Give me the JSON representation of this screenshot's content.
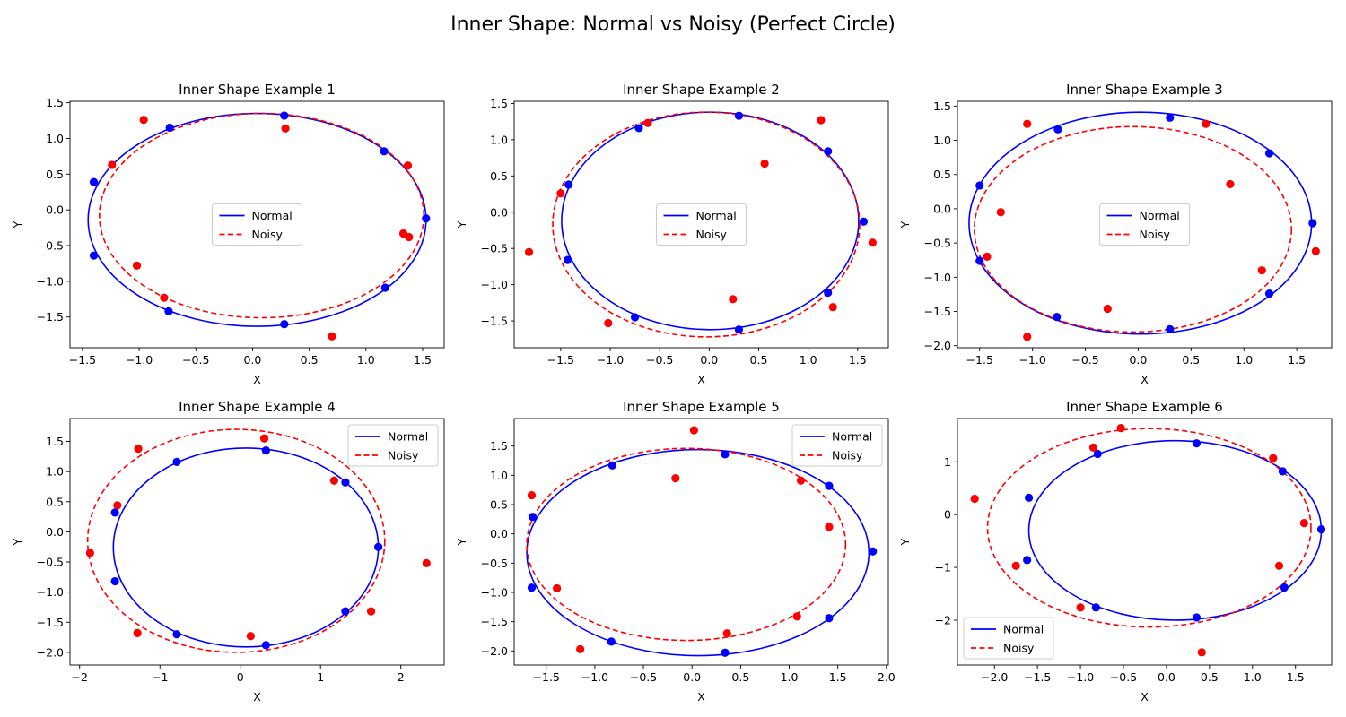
{
  "figure": {
    "suptitle": "Inner Shape: Normal vs Noisy (Perfect Circle)"
  },
  "colors": {
    "normal": "#0000ff",
    "noisy": "#ff0000"
  },
  "chart_data": [
    {
      "type": "scatter",
      "title": "Inner Shape Example 1",
      "xlabel": "X",
      "ylabel": "Y",
      "xlim": [
        -1.61,
        1.69
      ],
      "ylim": [
        -1.93,
        1.52
      ],
      "xticks": [
        -1.5,
        -1.0,
        -0.5,
        0.0,
        0.5,
        1.0,
        1.5
      ],
      "xtick_labels": [
        "−1.5",
        "−1.0",
        "−0.5",
        "0.0",
        "0.5",
        "1.0",
        "1.5"
      ],
      "yticks": [
        -1.5,
        -1.0,
        -0.5,
        0.0,
        0.5,
        1.0,
        1.5
      ],
      "ytick_labels": [
        "−1.5",
        "−1.0",
        "−0.5",
        "0.0",
        "0.5",
        "1.0",
        "1.5"
      ],
      "legend": {
        "position": "center",
        "entries": [
          "Normal",
          "Noisy"
        ]
      },
      "series": [
        {
          "name": "Normal",
          "style": "solid",
          "ellipse": {
            "cx": 0.04,
            "cy": -0.14,
            "rx": 1.49,
            "ry": 1.49
          },
          "points": [
            [
              1.53,
              -0.12
            ],
            [
              1.16,
              0.82
            ],
            [
              0.28,
              1.32
            ],
            [
              -0.73,
              1.15
            ],
            [
              -1.4,
              0.39
            ],
            [
              -1.4,
              -0.64
            ],
            [
              -0.74,
              -1.42
            ],
            [
              0.28,
              -1.6
            ],
            [
              1.17,
              -1.09
            ]
          ]
        },
        {
          "name": "Noisy",
          "style": "dashed",
          "ellipse": {
            "cx": 0.08,
            "cy": -0.08,
            "rx": 1.43,
            "ry": 1.43
          },
          "points": [
            [
              1.33,
              -0.33
            ],
            [
              1.38,
              -0.38
            ],
            [
              1.37,
              0.62
            ],
            [
              0.29,
              1.14
            ],
            [
              -0.96,
              1.26
            ],
            [
              -1.24,
              0.63
            ],
            [
              -1.02,
              -0.78
            ],
            [
              -0.78,
              -1.23
            ],
            [
              0.7,
              -1.77
            ]
          ]
        }
      ]
    },
    {
      "type": "scatter",
      "title": "Inner Shape Example 2",
      "xlabel": "X",
      "ylabel": "Y",
      "xlim": [
        -1.97,
        1.81
      ],
      "ylim": [
        -1.87,
        1.53
      ],
      "xticks": [
        -1.5,
        -1.0,
        -0.5,
        0.0,
        0.5,
        1.0,
        1.5
      ],
      "xtick_labels": [
        "−1.5",
        "−1.0",
        "−0.5",
        "0.0",
        "0.5",
        "1.0",
        "1.5"
      ],
      "yticks": [
        -1.5,
        -1.0,
        -0.5,
        0.0,
        0.5,
        1.0,
        1.5
      ],
      "ytick_labels": [
        "−1.5",
        "−1.0",
        "−0.5",
        "0.0",
        "0.5",
        "1.0",
        "1.5"
      ],
      "legend": {
        "position": "center",
        "entries": [
          "Normal",
          "Noisy"
        ]
      },
      "series": [
        {
          "name": "Normal",
          "style": "solid",
          "ellipse": {
            "cx": 0.01,
            "cy": -0.12,
            "rx": 1.5,
            "ry": 1.5
          },
          "points": [
            [
              1.56,
              -0.13
            ],
            [
              1.2,
              0.84
            ],
            [
              0.3,
              1.33
            ],
            [
              -0.71,
              1.16
            ],
            [
              -1.42,
              0.38
            ],
            [
              -1.43,
              -0.66
            ],
            [
              -0.75,
              -1.45
            ],
            [
              0.3,
              -1.62
            ],
            [
              1.2,
              -1.11
            ]
          ]
        },
        {
          "name": "Noisy",
          "style": "dashed",
          "ellipse": {
            "cx": -0.03,
            "cy": -0.17,
            "rx": 1.55,
            "ry": 1.55
          },
          "points": [
            [
              1.65,
              -0.42
            ],
            [
              1.13,
              1.27
            ],
            [
              0.56,
              0.67
            ],
            [
              -0.62,
              1.23
            ],
            [
              -1.5,
              0.26
            ],
            [
              -1.82,
              -0.55
            ],
            [
              -1.02,
              -1.53
            ],
            [
              0.24,
              -1.2
            ],
            [
              1.25,
              -1.31
            ]
          ]
        }
      ]
    },
    {
      "type": "scatter",
      "title": "Inner Shape Example 3",
      "xlabel": "X",
      "ylabel": "Y",
      "xlim": [
        -1.71,
        1.83
      ],
      "ylim": [
        -2.03,
        1.57
      ],
      "xticks": [
        -1.5,
        -1.0,
        -0.5,
        0.0,
        0.5,
        1.0,
        1.5
      ],
      "xtick_labels": [
        "−1.5",
        "−1.0",
        "−0.5",
        "0.0",
        "0.5",
        "1.0",
        "1.5"
      ],
      "yticks": [
        -2.0,
        -1.5,
        -1.0,
        -0.5,
        0.0,
        0.5,
        1.0,
        1.5
      ],
      "ytick_labels": [
        "−2.0",
        "−1.5",
        "−1.0",
        "−0.5",
        "0.0",
        "0.5",
        "1.0",
        "1.5"
      ],
      "legend": {
        "position": "center",
        "entries": [
          "Normal",
          "Noisy"
        ]
      },
      "series": [
        {
          "name": "Normal",
          "style": "solid",
          "ellipse": {
            "cx": 0.02,
            "cy": -0.21,
            "rx": 1.62,
            "ry": 1.62
          },
          "points": [
            [
              1.65,
              -0.21
            ],
            [
              1.24,
              0.81
            ],
            [
              0.3,
              1.33
            ],
            [
              -0.76,
              1.16
            ],
            [
              -1.5,
              0.34
            ],
            [
              -1.5,
              -0.76
            ],
            [
              -0.77,
              -1.58
            ],
            [
              0.3,
              -1.76
            ],
            [
              1.24,
              -1.24
            ]
          ]
        },
        {
          "name": "Noisy",
          "style": "dashed",
          "ellipse": {
            "cx": -0.05,
            "cy": -0.3,
            "rx": 1.5,
            "ry": 1.5
          },
          "points": [
            [
              1.68,
              -0.62
            ],
            [
              0.64,
              1.24
            ],
            [
              0.87,
              0.36
            ],
            [
              -1.05,
              1.24
            ],
            [
              -1.3,
              -0.05
            ],
            [
              -1.43,
              -0.7
            ],
            [
              -1.05,
              -1.87
            ],
            [
              -0.29,
              -1.46
            ],
            [
              1.17,
              -0.9
            ]
          ]
        }
      ]
    },
    {
      "type": "scatter",
      "title": "Inner Shape Example 4",
      "xlabel": "X",
      "ylabel": "Y",
      "xlim": [
        -2.12,
        2.54
      ],
      "ylim": [
        -2.21,
        1.88
      ],
      "xticks": [
        -2,
        -1,
        0,
        1,
        2
      ],
      "xtick_labels": [
        "−2",
        "−1",
        "0",
        "1",
        "2"
      ],
      "yticks": [
        -2.0,
        -1.5,
        -1.0,
        -0.5,
        0.0,
        0.5,
        1.0,
        1.5
      ],
      "ytick_labels": [
        "−2.0",
        "−1.5",
        "−1.0",
        "−0.5",
        "0.0",
        "0.5",
        "1.0",
        "1.5"
      ],
      "legend": {
        "position": "upper right",
        "entries": [
          "Normal",
          "Noisy"
        ]
      },
      "series": [
        {
          "name": "Normal",
          "style": "solid",
          "ellipse": {
            "cx": 0.07,
            "cy": -0.26,
            "rx": 1.65,
            "ry": 1.65
          },
          "points": [
            [
              1.72,
              -0.25
            ],
            [
              1.31,
              0.82
            ],
            [
              0.32,
              1.35
            ],
            [
              -0.79,
              1.16
            ],
            [
              -1.56,
              0.32
            ],
            [
              -1.56,
              -0.82
            ],
            [
              -0.79,
              -1.7
            ],
            [
              0.32,
              -1.88
            ],
            [
              1.31,
              -1.32
            ]
          ]
        },
        {
          "name": "Noisy",
          "style": "dashed",
          "ellipse": {
            "cx": -0.05,
            "cy": -0.15,
            "rx": 1.85,
            "ry": 1.85
          },
          "points": [
            [
              2.32,
              -0.52
            ],
            [
              1.17,
              0.85
            ],
            [
              0.3,
              1.55
            ],
            [
              -1.27,
              1.38
            ],
            [
              -1.53,
              0.44
            ],
            [
              -1.87,
              -0.35
            ],
            [
              -1.28,
              -1.68
            ],
            [
              0.13,
              -1.73
            ],
            [
              1.63,
              -1.32
            ]
          ]
        }
      ]
    },
    {
      "type": "scatter",
      "title": "Inner Shape Example 5",
      "xlabel": "X",
      "ylabel": "Y",
      "xlim": [
        -1.83,
        2.02
      ],
      "ylim": [
        -2.24,
        1.97
      ],
      "xticks": [
        -1.5,
        -1.0,
        -0.5,
        0.0,
        0.5,
        1.0,
        1.5,
        2.0
      ],
      "xtick_labels": [
        "−1.5",
        "−1.0",
        "−0.5",
        "0.0",
        "0.5",
        "1.0",
        "1.5",
        "2.0"
      ],
      "yticks": [
        -2.0,
        -1.5,
        -1.0,
        -0.5,
        0.0,
        0.5,
        1.0,
        1.5
      ],
      "ytick_labels": [
        "−2.0",
        "−1.5",
        "−1.0",
        "−0.5",
        "0.0",
        "0.5",
        "1.0",
        "1.5"
      ],
      "legend": {
        "position": "upper right",
        "entries": [
          "Normal",
          "Noisy"
        ]
      },
      "series": [
        {
          "name": "Normal",
          "style": "solid",
          "ellipse": {
            "cx": 0.06,
            "cy": -0.32,
            "rx": 1.76,
            "ry": 1.76
          },
          "points": [
            [
              1.86,
              -0.3
            ],
            [
              1.41,
              0.82
            ],
            [
              0.34,
              1.36
            ],
            [
              -0.82,
              1.17
            ],
            [
              -1.64,
              0.29
            ],
            [
              -1.65,
              -0.92
            ],
            [
              -0.83,
              -1.84
            ],
            [
              0.34,
              -2.03
            ],
            [
              1.41,
              -1.44
            ]
          ]
        },
        {
          "name": "Noisy",
          "style": "dashed",
          "ellipse": {
            "cx": -0.06,
            "cy": -0.18,
            "rx": 1.64,
            "ry": 1.64
          },
          "points": [
            [
              1.41,
              0.12
            ],
            [
              1.12,
              0.91
            ],
            [
              0.02,
              1.77
            ],
            [
              -0.17,
              0.95
            ],
            [
              -1.65,
              0.66
            ],
            [
              -1.39,
              -0.93
            ],
            [
              -1.15,
              -1.97
            ],
            [
              0.36,
              -1.7
            ],
            [
              1.08,
              -1.41
            ]
          ]
        }
      ]
    },
    {
      "type": "scatter",
      "title": "Inner Shape Example 6",
      "xlabel": "X",
      "ylabel": "Y",
      "xlim": [
        -2.43,
        1.92
      ],
      "ylim": [
        -2.85,
        1.82
      ],
      "xticks": [
        -2.0,
        -1.5,
        -1.0,
        -0.5,
        0.0,
        0.5,
        1.0,
        1.5
      ],
      "xtick_labels": [
        "−2.0",
        "−1.5",
        "−1.0",
        "−0.5",
        "0.0",
        "0.5",
        "1.0",
        "1.5"
      ],
      "yticks": [
        -2,
        -1,
        0,
        1
      ],
      "ytick_labels": [
        "−2",
        "−1",
        "0",
        "1"
      ],
      "legend": {
        "position": "lower left",
        "entries": [
          "Normal",
          "Noisy"
        ]
      },
      "series": [
        {
          "name": "Normal",
          "style": "solid",
          "ellipse": {
            "cx": 0.1,
            "cy": -0.3,
            "rx": 1.7,
            "ry": 1.7
          },
          "points": [
            [
              1.8,
              -0.28
            ],
            [
              1.35,
              0.82
            ],
            [
              0.35,
              1.35
            ],
            [
              -0.8,
              1.15
            ],
            [
              -1.6,
              0.32
            ],
            [
              -1.62,
              -0.86
            ],
            [
              -0.82,
              -1.76
            ],
            [
              0.35,
              -1.95
            ],
            [
              1.37,
              -1.38
            ]
          ]
        },
        {
          "name": "Noisy",
          "style": "dashed",
          "ellipse": {
            "cx": -0.2,
            "cy": -0.25,
            "rx": 1.88,
            "ry": 1.88
          },
          "points": [
            [
              1.6,
              -0.16
            ],
            [
              1.24,
              1.07
            ],
            [
              -0.53,
              1.64
            ],
            [
              -0.85,
              1.27
            ],
            [
              -2.23,
              0.3
            ],
            [
              -1.75,
              -0.97
            ],
            [
              -1.0,
              -1.76
            ],
            [
              0.41,
              -2.61
            ],
            [
              1.31,
              -0.97
            ]
          ]
        }
      ]
    }
  ]
}
